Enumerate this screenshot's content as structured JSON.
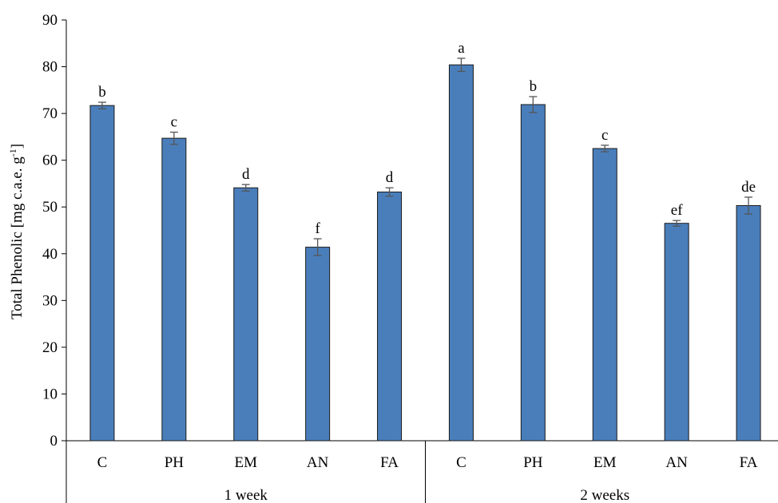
{
  "chart_data": {
    "type": "bar",
    "ylabel": "Total Phenolic [mg c.a.e. g",
    "ylabel_sup": "-1",
    "ylabel_end": "]",
    "ylim": [
      0,
      90
    ],
    "yticks": [
      0,
      10,
      20,
      30,
      40,
      50,
      60,
      70,
      80,
      90
    ],
    "bar_color": "#4a7ebb",
    "groups": [
      {
        "label": "1 week",
        "categories": [
          "C",
          "PH",
          "EM",
          "AN",
          "FA"
        ],
        "values": [
          71.7,
          64.7,
          54.1,
          41.4,
          53.2
        ],
        "errors": [
          0.7,
          1.3,
          0.7,
          1.8,
          0.9
        ],
        "letters": [
          "b",
          "c",
          "d",
          "f",
          "d"
        ]
      },
      {
        "label": "2 weeks",
        "categories": [
          "C",
          "PH",
          "EM",
          "AN",
          "FA"
        ],
        "values": [
          80.4,
          71.9,
          62.5,
          46.5,
          50.3
        ],
        "errors": [
          1.4,
          1.7,
          0.7,
          0.6,
          1.8
        ],
        "letters": [
          "a",
          "b",
          "c",
          "ef",
          "de"
        ]
      }
    ]
  }
}
